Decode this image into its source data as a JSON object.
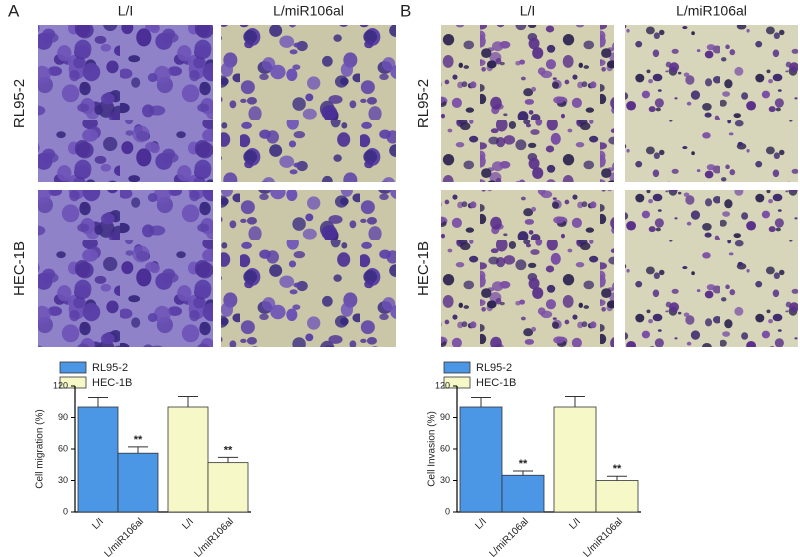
{
  "panels": [
    {
      "label": "A",
      "columns": [
        "L/I",
        "L/miR106al"
      ],
      "rows": [
        "RL95-2",
        "HEC-1B"
      ]
    },
    {
      "label": "B",
      "columns": [
        "L/I",
        "L/miR106al"
      ],
      "rows": [
        "RL95-2",
        "HEC-1B"
      ]
    }
  ],
  "chart_data": [
    {
      "type": "bar",
      "ylabel": "Cell migration (%)",
      "categories": [
        "L/I",
        "L/miR106al",
        "L/I",
        "L/miR106al"
      ],
      "series": [
        {
          "name": "RL95-2",
          "color": "#4c96e6",
          "values": [
            100,
            56,
            null,
            null
          ],
          "errors": [
            9,
            6,
            null,
            null
          ]
        },
        {
          "name": "HEC-1B",
          "color": "#f6f8c8",
          "values": [
            null,
            null,
            100,
            47
          ],
          "errors": [
            null,
            null,
            10,
            5
          ]
        }
      ],
      "ylim": [
        0,
        120
      ],
      "yticks": [
        0,
        30,
        60,
        90,
        120
      ],
      "annotations": [
        "**",
        "**"
      ]
    },
    {
      "type": "bar",
      "ylabel": "Cell Invasion (%)",
      "categories": [
        "L/I",
        "L/miR106al",
        "L/I",
        "L/miR106al"
      ],
      "series": [
        {
          "name": "RL95-2",
          "color": "#4c96e6",
          "values": [
            100,
            35,
            null,
            null
          ],
          "errors": [
            9,
            4,
            null,
            null
          ]
        },
        {
          "name": "HEC-1B",
          "color": "#f6f8c8",
          "values": [
            null,
            null,
            100,
            30
          ],
          "errors": [
            null,
            null,
            10,
            4
          ]
        }
      ],
      "ylim": [
        0,
        120
      ],
      "yticks": [
        0,
        30,
        60,
        90,
        120
      ],
      "annotations": [
        "**",
        "**"
      ]
    }
  ]
}
